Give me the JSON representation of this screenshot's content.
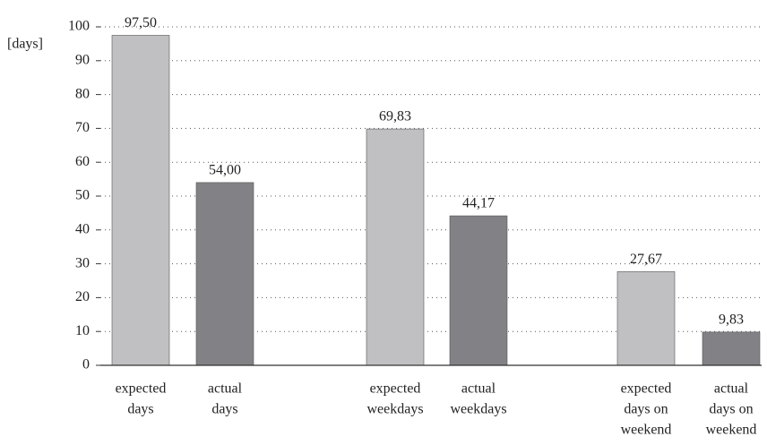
{
  "chart_data": {
    "type": "bar",
    "y_label": "[days]",
    "categories": [
      [
        "expected",
        "days"
      ],
      [
        "actual",
        "days"
      ],
      [
        "expected",
        "weekdays"
      ],
      [
        "actual",
        "weekdays"
      ],
      [
        "expected",
        "days on",
        "weekend"
      ],
      [
        "actual",
        "days on",
        "weekend"
      ]
    ],
    "values": [
      97.5,
      54.0,
      69.83,
      44.17,
      27.67,
      9.83
    ],
    "value_labels": [
      "97,50",
      "54,00",
      "69,83",
      "44,17",
      "27,67",
      "9,83"
    ],
    "colors": [
      "#c0c0c3",
      "#818186",
      "#c0c0c3",
      "#818186",
      "#c0c0c3",
      "#818186"
    ],
    "ylim": [
      0,
      100
    ],
    "yticks": [
      0,
      10,
      20,
      30,
      40,
      50,
      60,
      70,
      80,
      90,
      100
    ],
    "grid": true
  }
}
